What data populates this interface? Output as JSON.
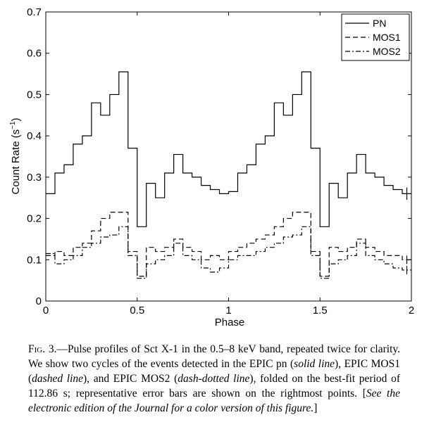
{
  "chart_data": {
    "type": "line",
    "title": "",
    "xlabel": "Phase",
    "ylabel": "Count Rate (s",
    "ylabel_sup": "−1",
    "ylabel_close": ")",
    "xlim": [
      0,
      2
    ],
    "ylim": [
      0,
      0.7
    ],
    "xticks": [
      "0",
      "0.5",
      "1",
      "1.5",
      "2"
    ],
    "yticks": [
      "0",
      "0.1",
      "0.2",
      "0.3",
      "0.4",
      "0.5",
      "0.6",
      "0.7"
    ],
    "grid": false,
    "legend_position": "top-right",
    "series": [
      {
        "name": "PN",
        "style": "solid",
        "values": [
          0.26,
          0.31,
          0.33,
          0.38,
          0.4,
          0.48,
          0.45,
          0.5,
          0.555,
          0.37,
          0.18,
          0.285,
          0.25,
          0.31,
          0.355,
          0.31,
          0.3,
          0.28,
          0.27,
          0.26,
          0.265,
          0.31,
          0.33,
          0.38,
          0.4,
          0.48,
          0.45,
          0.5,
          0.555,
          0.37,
          0.18,
          0.285,
          0.25,
          0.31,
          0.355,
          0.31,
          0.3,
          0.28,
          0.27,
          0.26
        ],
        "error_bar": 0.015
      },
      {
        "name": "MOS1",
        "style": "dashed",
        "values": [
          0.11,
          0.12,
          0.11,
          0.13,
          0.14,
          0.17,
          0.2,
          0.215,
          0.215,
          0.12,
          0.06,
          0.13,
          0.12,
          0.13,
          0.15,
          0.13,
          0.12,
          0.1,
          0.11,
          0.1,
          0.12,
          0.13,
          0.14,
          0.15,
          0.16,
          0.18,
          0.2,
          0.215,
          0.215,
          0.12,
          0.06,
          0.13,
          0.12,
          0.13,
          0.15,
          0.13,
          0.12,
          0.11,
          0.11,
          0.1
        ],
        "error_bar": 0.01
      },
      {
        "name": "MOS2",
        "style": "dash-dot",
        "values": [
          0.115,
          0.09,
          0.1,
          0.11,
          0.13,
          0.14,
          0.155,
          0.16,
          0.18,
          0.11,
          0.055,
          0.09,
          0.1,
          0.11,
          0.14,
          0.11,
          0.1,
          0.08,
          0.07,
          0.08,
          0.1,
          0.11,
          0.11,
          0.12,
          0.13,
          0.14,
          0.155,
          0.16,
          0.18,
          0.11,
          0.055,
          0.09,
          0.1,
          0.11,
          0.14,
          0.11,
          0.1,
          0.09,
          0.08,
          0.075
        ],
        "error_bar": 0.01
      }
    ]
  },
  "caption": {
    "fig_label": "Fig. 3.",
    "part1": "—Pulse profiles of Sct X-1 in the 0.5–8 keV band, repeated twice for clarity. We show two cycles of the events detected in the EPIC pn (",
    "pn_style": "solid line",
    "part2": "), EPIC MOS1 (",
    "mos1_style": "dashed line",
    "part3": "), and EPIC MOS2 (",
    "mos2_style": "dash-dotted line",
    "part4": "), folded on the best-fit period of 112.86 s; representative error bars are shown on the rightmost points. [",
    "edition_note": "See the electronic edition of the Journal for a color version of this figure.",
    "part5": "]"
  }
}
